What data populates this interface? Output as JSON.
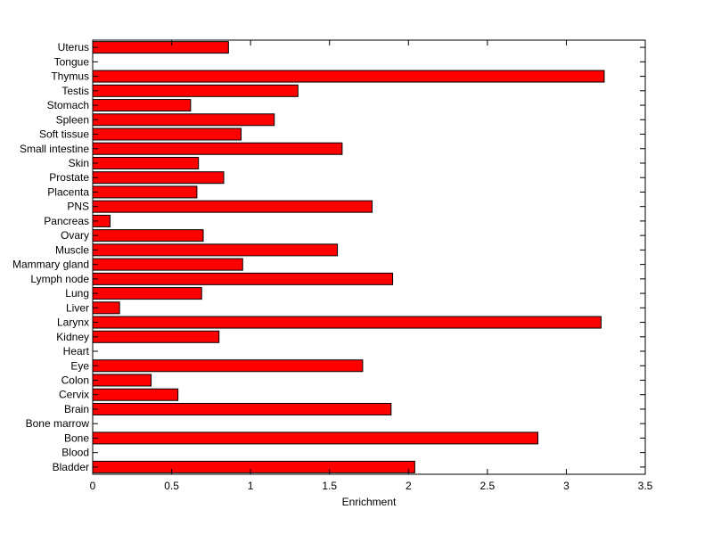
{
  "chart_data": {
    "type": "bar",
    "orientation": "horizontal",
    "title": "",
    "xlabel": "Enrichment",
    "ylabel": "",
    "xlim": [
      0,
      3.5
    ],
    "xticks": [
      0,
      0.5,
      1,
      1.5,
      2,
      2.5,
      3,
      3.5
    ],
    "xtick_labels": [
      "0",
      "0.5",
      "1",
      "1.5",
      "2",
      "2.5",
      "3",
      "3.5"
    ],
    "grid": false,
    "bar_color": "#ff0000",
    "categories": [
      "Bladder",
      "Blood",
      "Bone",
      "Bone marrow",
      "Brain",
      "Cervix",
      "Colon",
      "Eye",
      "Heart",
      "Kidney",
      "Larynx",
      "Liver",
      "Lung",
      "Lymph node",
      "Mammary gland",
      "Muscle",
      "Ovary",
      "Pancreas",
      "PNS",
      "Placenta",
      "Prostate",
      "Skin",
      "Small intestine",
      "Soft tissue",
      "Spleen",
      "Stomach",
      "Testis",
      "Thymus",
      "Tongue",
      "Uterus"
    ],
    "values": [
      2.04,
      0,
      2.82,
      0,
      1.89,
      0.54,
      0.37,
      1.71,
      0,
      0.8,
      3.22,
      0.17,
      0.69,
      1.9,
      0.95,
      1.55,
      0.7,
      0.11,
      1.77,
      0.66,
      0.83,
      0.67,
      1.58,
      0.94,
      1.15,
      0.62,
      1.3,
      3.24,
      0,
      0.86
    ]
  }
}
